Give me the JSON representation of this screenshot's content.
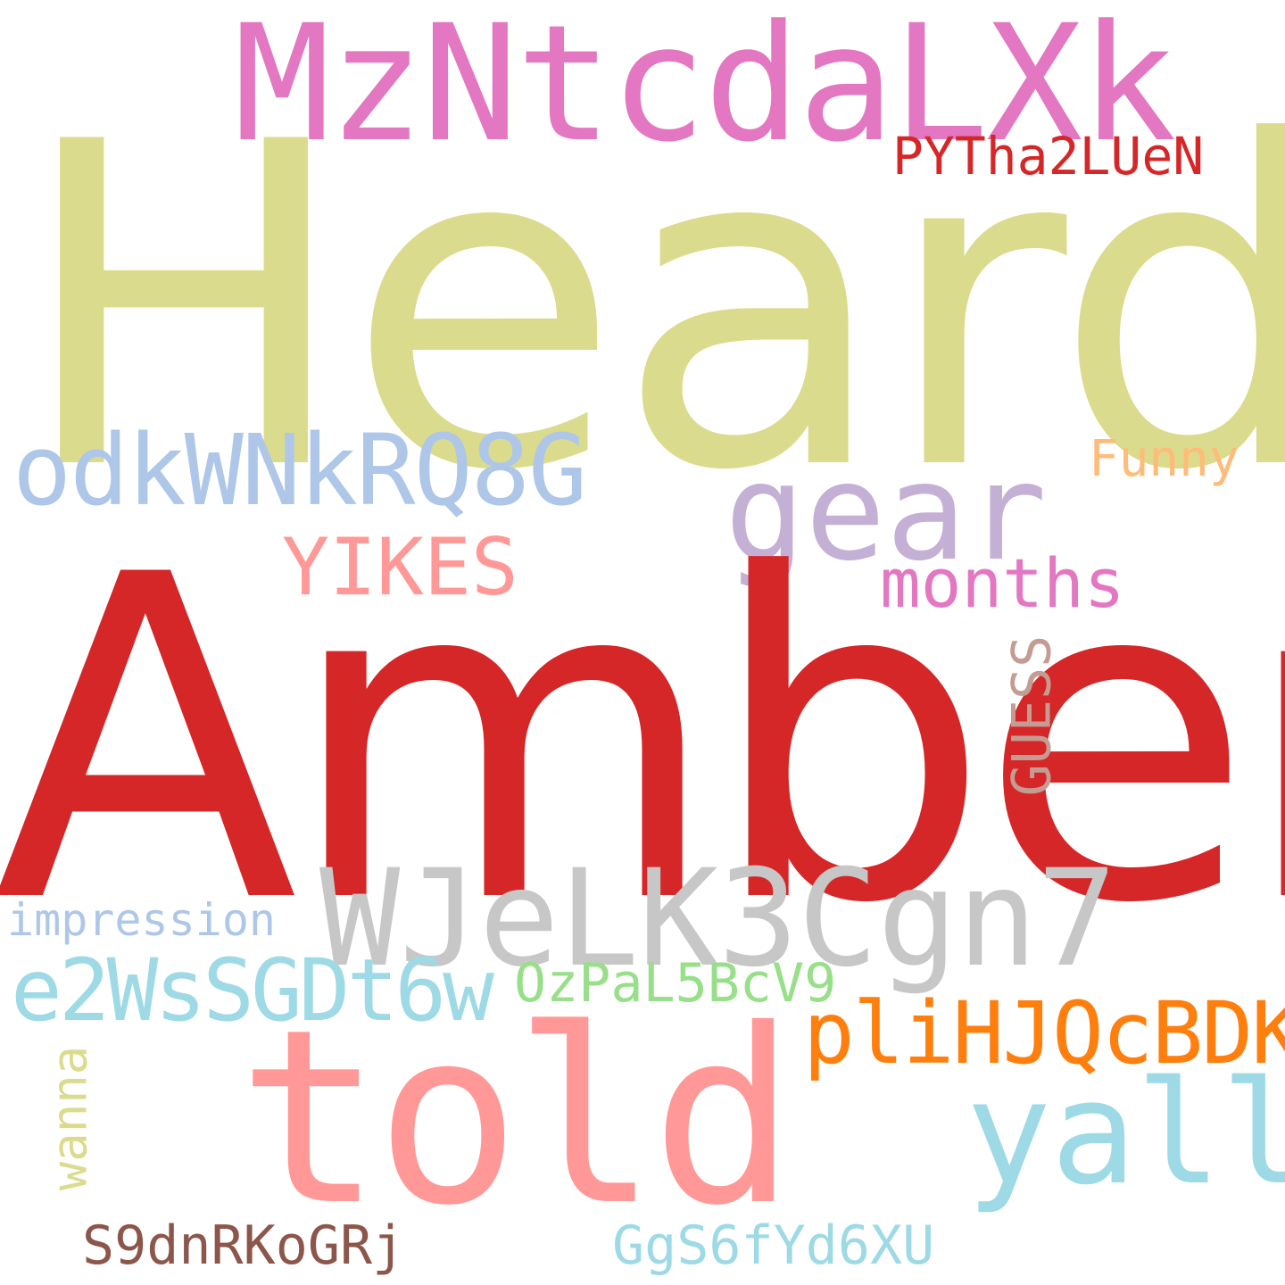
{
  "words": {
    "heard": {
      "text": "Heard",
      "color": "#dbdb8d"
    },
    "amber": {
      "text": "Amber",
      "color": "#d62728"
    },
    "mzntcdalxk": {
      "text": "MzNtcdaLXk",
      "color": "#e377c2"
    },
    "pytha2luen": {
      "text": "PYTha2LUeN",
      "color": "#d62728"
    },
    "odkwnkrq8g": {
      "text": "odkWNkRQ8G",
      "color": "#aec7e8"
    },
    "gear": {
      "text": "gear",
      "color": "#c5b0d5"
    },
    "funny": {
      "text": "Funny",
      "color": "#ffbb78"
    },
    "yikes": {
      "text": "YIKES",
      "color": "#ff9896"
    },
    "months": {
      "text": "months",
      "color": "#e377c2"
    },
    "guess": {
      "text": "GUESS",
      "color": "#c49c94"
    },
    "wjelk3cgn7": {
      "text": "WJeLK3Cgn7",
      "color": "#c7c7c7"
    },
    "impression": {
      "text": "impression",
      "color": "#aec7e8"
    },
    "e2wssgdt6w": {
      "text": "e2WsSGDt6w",
      "color": "#9edae5"
    },
    "ozpal5bcv9": {
      "text": "OzPaL5BcV9",
      "color": "#98df8a"
    },
    "plihjqcbdk": {
      "text": "pliHJQcBDK",
      "color": "#ff7f0e"
    },
    "told": {
      "text": "told",
      "color": "#ff9896"
    },
    "yall": {
      "text": "yall",
      "color": "#9edae5"
    },
    "wanna": {
      "text": "wanna",
      "color": "#dbdb8d"
    },
    "s9dnrkogrj": {
      "text": "S9dnRKoGRj",
      "color": "#8c564b"
    },
    "ggs6fyd6xu": {
      "text": "GgS6fYd6XU",
      "color": "#9edae5"
    }
  }
}
